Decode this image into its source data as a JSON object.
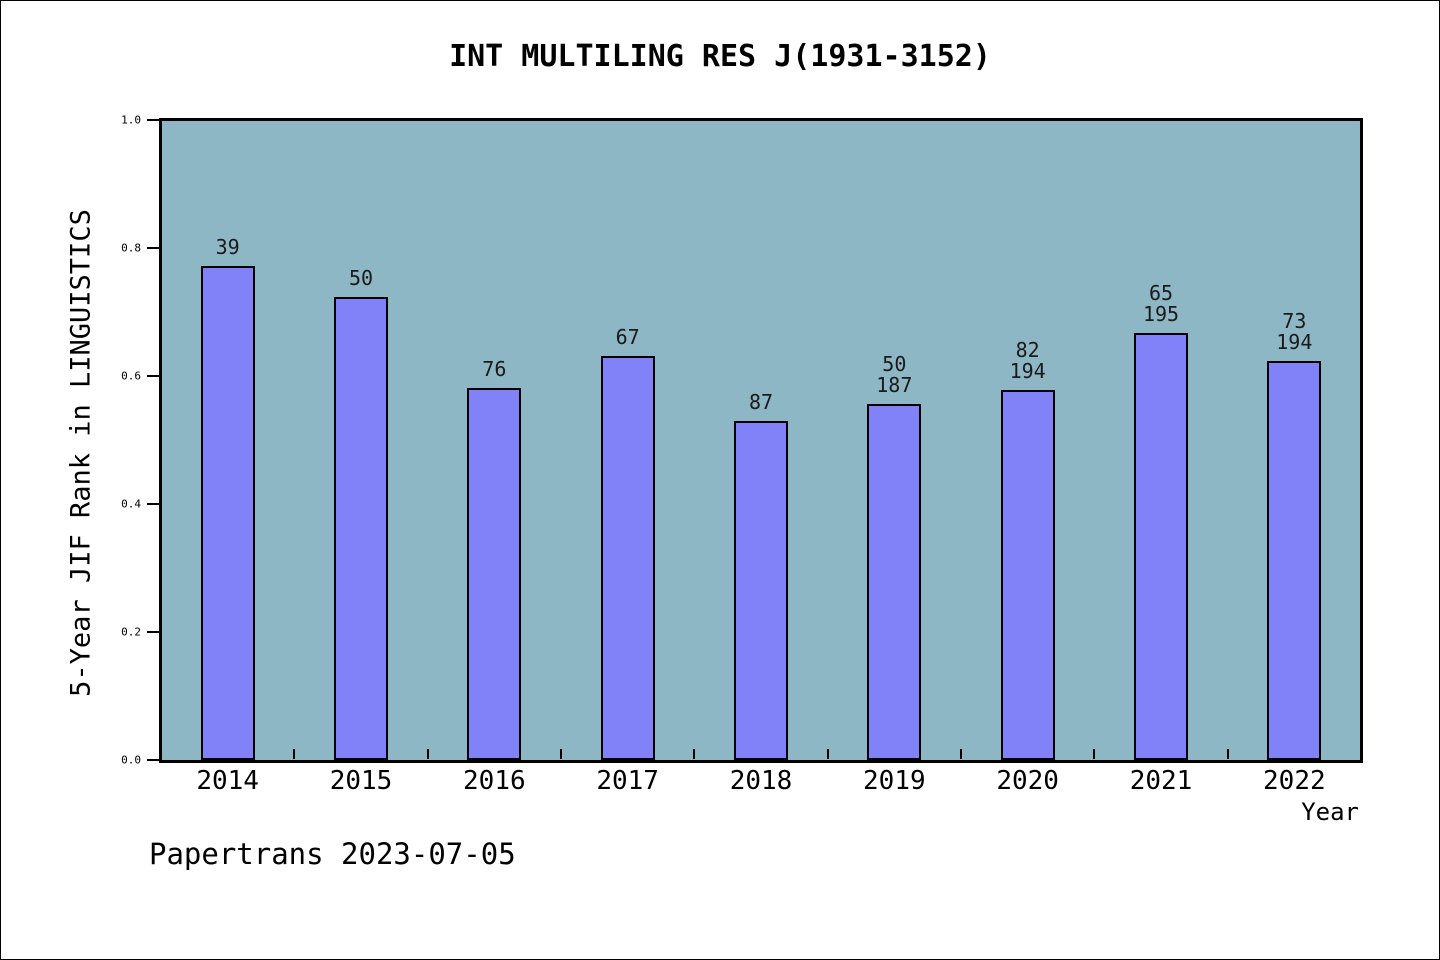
{
  "footer": "Papertrans 2023-07-05",
  "colors": {
    "page_bg": "#ffffff",
    "plot_bg": "#8db7c5",
    "bar_fill": "#8181f8",
    "bar_border": "#000000",
    "axis_color": "#000000",
    "text_color": "#000000"
  },
  "chart_data": {
    "type": "bar",
    "title": "INT MULTILING RES J(1931-3152)",
    "xlabel": "Year",
    "ylabel": "5-Year JIF Rank in LINGUISTICS",
    "ylim": [
      0.0,
      1.0
    ],
    "yticks": [
      {
        "value": 0.0,
        "label": "0.0"
      },
      {
        "value": 0.2,
        "label": "0.2"
      },
      {
        "value": 0.4,
        "label": "0.4"
      },
      {
        "value": 0.6,
        "label": "0.6"
      },
      {
        "value": 0.8,
        "label": "0.8"
      },
      {
        "value": 1.0,
        "label": "1.0"
      }
    ],
    "grid": false,
    "legend": null,
    "categories": [
      "2014",
      "2015",
      "2016",
      "2017",
      "2018",
      "2019",
      "2020",
      "2021",
      "2022"
    ],
    "values": [
      0.772,
      0.723,
      0.582,
      0.631,
      0.53,
      0.557,
      0.578,
      0.667,
      0.623
    ],
    "bar_labels": [
      [
        "39"
      ],
      [
        "50"
      ],
      [
        "76"
      ],
      [
        "67"
      ],
      [
        "87"
      ],
      [
        "50",
        "187"
      ],
      [
        "82",
        "194"
      ],
      [
        "65",
        "195"
      ],
      [
        "73",
        "194"
      ]
    ]
  }
}
